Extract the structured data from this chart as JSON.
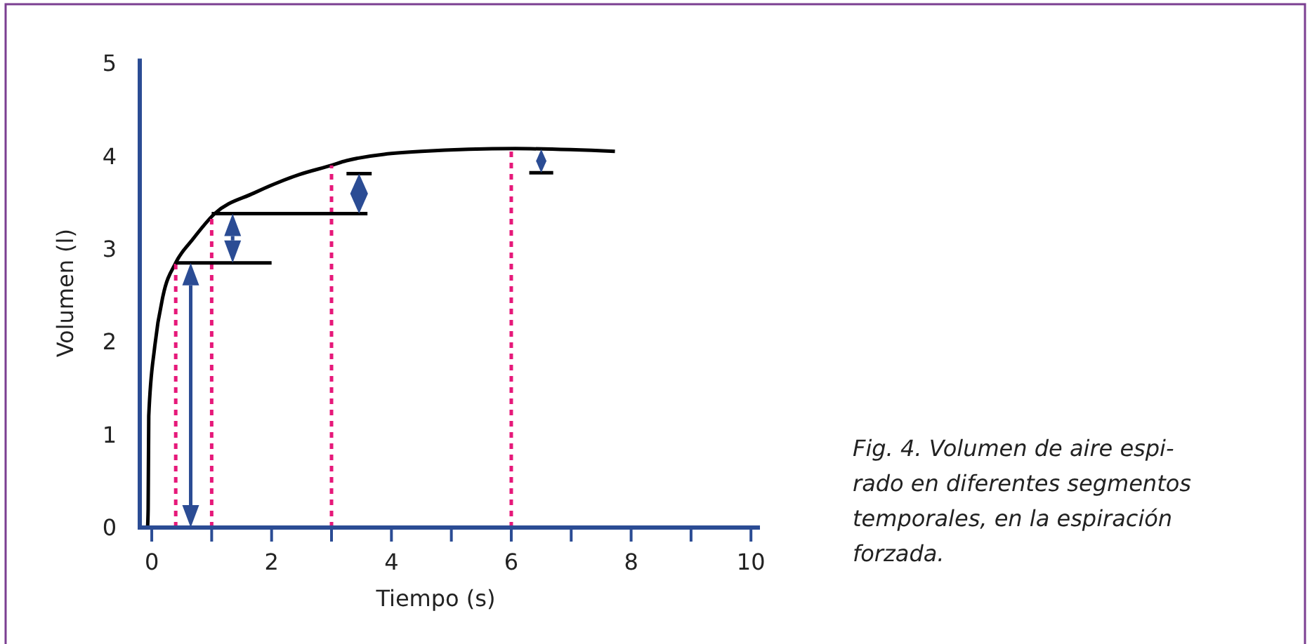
{
  "chart_data": {
    "type": "line",
    "xlabel": "Tiempo (s)",
    "ylabel": "Volumen (l)",
    "xlim": [
      -0.2,
      10.15
    ],
    "ylim": [
      0,
      5.05
    ],
    "xticks": [
      0,
      {
        "value": 1,
        "label": null
      },
      2,
      {
        "value": 3,
        "label": null
      },
      4,
      {
        "value": 5,
        "label": null
      },
      6,
      {
        "value": 7,
        "label": null
      },
      8,
      {
        "value": 9,
        "label": null
      },
      10
    ],
    "yticks": [
      0,
      1,
      2,
      3,
      4,
      5
    ],
    "series": [
      {
        "color": "#000000",
        "line_style": "solid",
        "x": [
          -0.07,
          -0.06,
          -0.05,
          0.05,
          0.19,
          0.4,
          0.68,
          1.05,
          1.7,
          2.46,
          3.0,
          3.25,
          4.5,
          6.07,
          7.73
        ],
        "values": [
          0,
          0.2,
          1.2,
          1.95,
          2.5,
          2.85,
          3.1,
          3.38,
          3.6,
          3.8,
          3.9,
          3.95,
          4.05,
          4.08,
          4.05
        ]
      },
      {
        "color": "#e6197a",
        "line_style": "dotted",
        "x": [
          0.4,
          0.4
        ],
        "values": [
          0,
          2.85
        ]
      },
      {
        "color": "#e6197a",
        "line_style": "dotted",
        "x": [
          1,
          1
        ],
        "values": [
          0,
          3.38
        ]
      },
      {
        "color": "#e6197a",
        "line_style": "dotted",
        "x": [
          3,
          3
        ],
        "values": [
          0,
          3.9
        ]
      },
      {
        "color": "#e6197a",
        "line_style": "dotted",
        "x": [
          6,
          6
        ],
        "values": [
          0,
          4.08
        ]
      },
      {
        "color": "#000000",
        "line_style": "solid",
        "x": [
          0.4,
          2
        ],
        "values": [
          2.85,
          2.85
        ]
      },
      {
        "color": "#000000",
        "line_style": "solid",
        "x": [
          1,
          3.6
        ],
        "values": [
          3.38,
          3.38
        ]
      },
      {
        "color": "#000000",
        "line_style": "solid",
        "x": [
          3.25,
          3.67
        ],
        "values": [
          3.81,
          3.81
        ]
      },
      {
        "color": "#000000",
        "line_style": "solid",
        "x": [
          6.3,
          6.7
        ],
        "values": [
          3.82,
          3.82
        ]
      }
    ],
    "annotations": [
      "Fig. 4. Volumen de aire espi-\nrado en diferentes segmentos\ntemporales, en la espiración\nforzada."
    ]
  }
}
